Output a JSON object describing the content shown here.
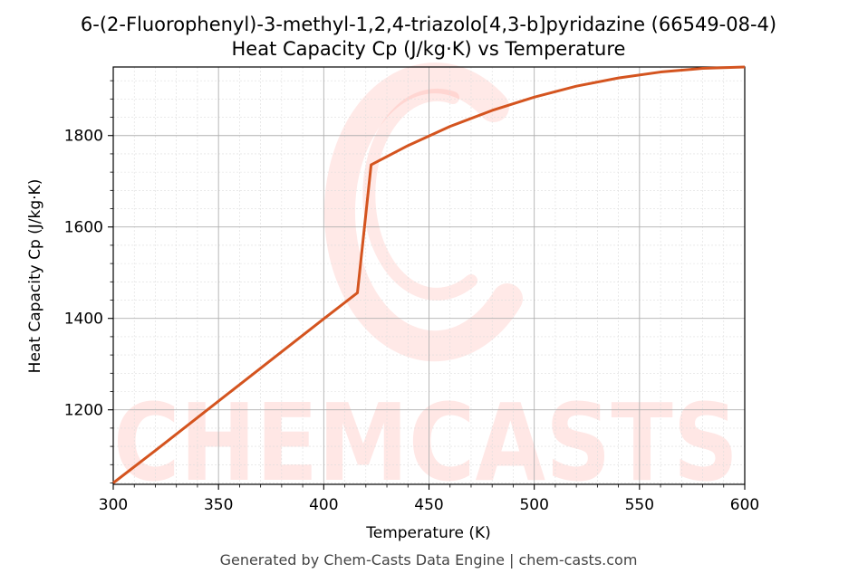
{
  "chart_data": {
    "type": "line",
    "title": "6-(2-Fluorophenyl)-3-methyl-1,2,4-triazolo[4,3-b]pyridazine (66549-08-4)",
    "subtitle": "Heat Capacity Cp (J/kg·K) vs Temperature",
    "xlabel": "Temperature (K)",
    "ylabel": "Heat Capacity Cp (J/kg·K)",
    "xlim": [
      300,
      600
    ],
    "ylim": [
      1037,
      1950
    ],
    "xticks": [
      300,
      350,
      400,
      450,
      500,
      550,
      600
    ],
    "yticks": [
      1200,
      1400,
      1600,
      1800
    ],
    "grid": true,
    "line_color": "#d4541f",
    "series": [
      {
        "x": [
          300,
          320,
          340,
          360,
          380,
          400,
          416,
          422.5,
          440,
          460,
          480,
          500,
          520,
          540,
          560,
          580,
          600
        ],
        "y": [
          1040,
          1111,
          1183,
          1255,
          1327,
          1399,
          1456,
          1736,
          1778,
          1820,
          1855,
          1884,
          1908,
          1926,
          1939,
          1947,
          1950
        ]
      }
    ]
  },
  "watermark": {
    "text": "CHEMCASTS",
    "color": "#ff6b5b"
  },
  "footer": "Generated by Chem-Casts Data Engine | chem-casts.com"
}
